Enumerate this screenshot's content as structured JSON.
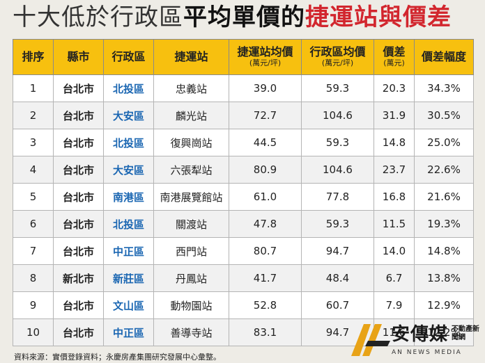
{
  "title": {
    "part1": "十大低於行政區",
    "part2": "平均單價的",
    "part3": "捷運站與價差"
  },
  "table": {
    "headers": [
      {
        "main": "排序",
        "sub": ""
      },
      {
        "main": "縣市",
        "sub": ""
      },
      {
        "main": "行政區",
        "sub": ""
      },
      {
        "main": "捷運站",
        "sub": ""
      },
      {
        "main": "捷運站均價",
        "sub": "(萬元/坪)"
      },
      {
        "main": "行政區均價",
        "sub": "(萬元/坪)"
      },
      {
        "main": "價差",
        "sub": "(萬元)"
      },
      {
        "main": "價差幅度",
        "sub": ""
      }
    ],
    "rows": [
      {
        "rank": "1",
        "city": "台北市",
        "district": "北投區",
        "station": "忠義站",
        "station_price": "39.0",
        "district_price": "59.3",
        "diff": "20.3",
        "ratio": "34.3%"
      },
      {
        "rank": "2",
        "city": "台北市",
        "district": "大安區",
        "station": "麟光站",
        "station_price": "72.7",
        "district_price": "104.6",
        "diff": "31.9",
        "ratio": "30.5%"
      },
      {
        "rank": "3",
        "city": "台北市",
        "district": "北投區",
        "station": "復興崗站",
        "station_price": "44.5",
        "district_price": "59.3",
        "diff": "14.8",
        "ratio": "25.0%"
      },
      {
        "rank": "4",
        "city": "台北市",
        "district": "大安區",
        "station": "六張犁站",
        "station_price": "80.9",
        "district_price": "104.6",
        "diff": "23.7",
        "ratio": "22.6%"
      },
      {
        "rank": "5",
        "city": "台北市",
        "district": "南港區",
        "station": "南港展覽館站",
        "station_price": "61.0",
        "district_price": "77.8",
        "diff": "16.8",
        "ratio": "21.6%"
      },
      {
        "rank": "6",
        "city": "台北市",
        "district": "北投區",
        "station": "關渡站",
        "station_price": "47.8",
        "district_price": "59.3",
        "diff": "11.5",
        "ratio": "19.3%"
      },
      {
        "rank": "7",
        "city": "台北市",
        "district": "中正區",
        "station": "西門站",
        "station_price": "80.7",
        "district_price": "94.7",
        "diff": "14.0",
        "ratio": "14.8%"
      },
      {
        "rank": "8",
        "city": "新北市",
        "district": "新莊區",
        "station": "丹鳳站",
        "station_price": "41.7",
        "district_price": "48.4",
        "diff": "6.7",
        "ratio": "13.8%"
      },
      {
        "rank": "9",
        "city": "台北市",
        "district": "文山區",
        "station": "動物園站",
        "station_price": "52.8",
        "district_price": "60.7",
        "diff": "7.9",
        "ratio": "12.9%"
      },
      {
        "rank": "10",
        "city": "台北市",
        "district": "中正區",
        "station": "善導寺站",
        "station_price": "83.1",
        "district_price": "94.7",
        "diff": "11.6",
        "ratio": "12.2%"
      }
    ]
  },
  "source": "資料來源：實價登錄資料；永慶房產集團研究發展中心彙整。",
  "logo": {
    "name": "安傳媒",
    "sub": "不動產新聞網",
    "en": "AN NEWS MEDIA",
    "accent": "#e8a317"
  }
}
